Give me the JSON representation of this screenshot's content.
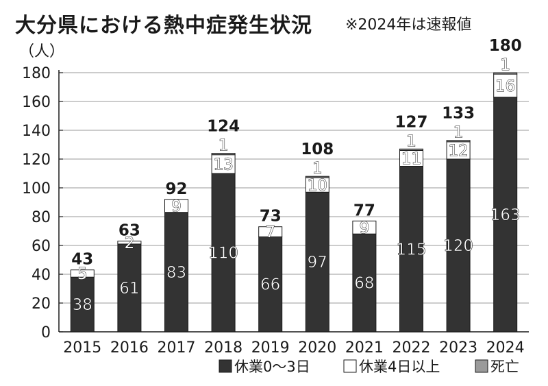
{
  "title": "大分県における熱中症発生状況",
  "note": "※2024年は速報値",
  "chart_data": {
    "type": "bar",
    "stacked": true,
    "title": "大分県における熱中症発生状況",
    "ylabel": "（人）",
    "xlabel": "",
    "ylim": [
      0,
      180
    ],
    "yticks": [
      0,
      20,
      40,
      60,
      80,
      100,
      120,
      140,
      160,
      180
    ],
    "grid": true,
    "legend_position": "bottom-right",
    "categories": [
      "2015",
      "2016",
      "2017",
      "2018",
      "2019",
      "2020",
      "2021",
      "2022",
      "2023",
      "2024"
    ],
    "series": [
      {
        "name": "休業0～3日",
        "color": "#333333",
        "values": [
          38,
          61,
          83,
          110,
          66,
          97,
          68,
          115,
          120,
          163
        ]
      },
      {
        "name": "休業4日以上",
        "color": "#ffffff",
        "values": [
          5,
          2,
          9,
          13,
          7,
          10,
          9,
          11,
          12,
          16
        ]
      },
      {
        "name": "死亡",
        "color": "#9a9a9a",
        "values": [
          0,
          0,
          0,
          1,
          0,
          1,
          0,
          1,
          1,
          1
        ]
      }
    ],
    "totals": [
      43,
      63,
      92,
      124,
      73,
      108,
      77,
      127,
      133,
      180
    ]
  }
}
